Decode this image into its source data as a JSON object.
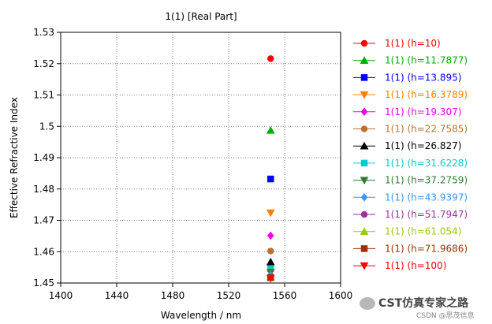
{
  "chart_data": {
    "type": "scatter",
    "title": "1(1) [Real Part]",
    "xlabel": "Wavelength / nm",
    "ylabel": "Effective Refractive Index",
    "xlim": [
      1400,
      1600
    ],
    "ylim": [
      1.45,
      1.53
    ],
    "x_ticks": [
      "1400",
      "1440",
      "1480",
      "1520",
      "1560",
      "1600"
    ],
    "y_ticks": [
      "1.45",
      "1.46",
      "1.47",
      "1.48",
      "1.49",
      "1.5",
      "1.51",
      "1.52",
      "1.53"
    ],
    "grid": "dotted",
    "legend_position": "right",
    "series": [
      {
        "name": "1(1) (h=10)",
        "color": "#ff0000",
        "marker": "circle",
        "x": [
          1550
        ],
        "y": [
          1.5216
        ]
      },
      {
        "name": "1(1) (h=11.7877)",
        "color": "#00b000",
        "marker": "triangle-up",
        "x": [
          1550
        ],
        "y": [
          1.4987
        ]
      },
      {
        "name": "1(1) (h=13.895)",
        "color": "#0000ff",
        "marker": "square",
        "x": [
          1550
        ],
        "y": [
          1.4832
        ]
      },
      {
        "name": "1(1) (h=16.3789)",
        "color": "#ff8000",
        "marker": "triangle-down",
        "x": [
          1550
        ],
        "y": [
          1.4724
        ]
      },
      {
        "name": "1(1) (h=19.307)",
        "color": "#ee00ee",
        "marker": "diamond",
        "x": [
          1550
        ],
        "y": [
          1.4651
        ]
      },
      {
        "name": "1(1) (h=22.7585)",
        "color": "#b87333",
        "marker": "circle",
        "x": [
          1550
        ],
        "y": [
          1.4602
        ]
      },
      {
        "name": "1(1) (h=26.827)",
        "color": "#000000",
        "marker": "triangle-up",
        "x": [
          1550
        ],
        "y": [
          1.4567
        ]
      },
      {
        "name": "1(1) (h=31.6228)",
        "color": "#00cccc",
        "marker": "square",
        "x": [
          1550
        ],
        "y": [
          1.4546
        ]
      },
      {
        "name": "1(1) (h=37.2759)",
        "color": "#2e7d32",
        "marker": "triangle-down",
        "x": [
          1550
        ],
        "y": [
          1.4534
        ]
      },
      {
        "name": "1(1) (h=43.9397)",
        "color": "#3399ff",
        "marker": "diamond",
        "x": [
          1550
        ],
        "y": [
          1.4526
        ]
      },
      {
        "name": "1(1) (h=51.7947)",
        "color": "#993399",
        "marker": "circle",
        "x": [
          1550
        ],
        "y": [
          1.4521
        ]
      },
      {
        "name": "1(1) (h=61.054)",
        "color": "#99cc00",
        "marker": "triangle-up",
        "x": [
          1550
        ],
        "y": [
          1.4519
        ]
      },
      {
        "name": "1(1) (h=71.9686)",
        "color": "#993300",
        "marker": "square",
        "x": [
          1550
        ],
        "y": [
          1.4517
        ]
      },
      {
        "name": "1(1) (h=100)",
        "color": "#ff0000",
        "marker": "triangle-down",
        "x": [
          1550
        ],
        "y": [
          1.4515
        ]
      }
    ]
  },
  "watermark": {
    "main": "CST仿真专家之路",
    "sub": "CSDN @思茂信息"
  }
}
